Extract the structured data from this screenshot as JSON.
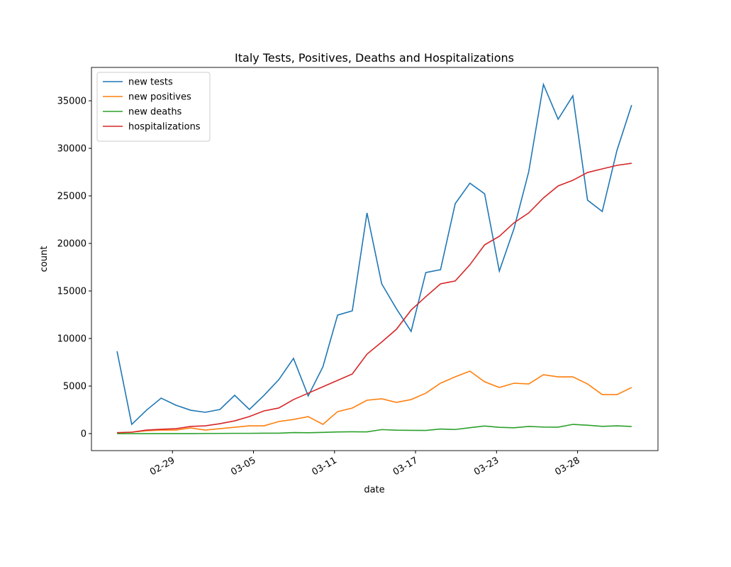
{
  "chart_data": {
    "type": "line",
    "title": "Italy Tests, Positives, Deaths and Hospitalizations",
    "x_label": "date",
    "y_label": "count",
    "x": [
      0,
      1,
      2,
      3,
      4,
      5,
      6,
      7,
      8,
      9,
      10,
      11,
      12,
      13,
      14,
      15,
      16,
      17,
      18,
      19,
      20,
      21,
      22,
      23,
      24,
      25,
      26,
      27,
      28,
      29,
      30,
      31,
      32,
      33,
      34,
      35
    ],
    "xlim": [
      -1.74,
      36.79
    ],
    "xticks": [
      {
        "value": 3.77,
        "label": "02-29"
      },
      {
        "value": 9.28,
        "label": "03-05"
      },
      {
        "value": 14.79,
        "label": "03-11"
      },
      {
        "value": 20.3,
        "label": "03-17"
      },
      {
        "value": 25.81,
        "label": "03-23"
      },
      {
        "value": 31.32,
        "label": "03-28"
      }
    ],
    "ylim": [
      -1790,
      38510
    ],
    "yticks": [
      0,
      5000,
      10000,
      15000,
      20000,
      25000,
      30000,
      35000
    ],
    "legend": "upper left",
    "series": [
      {
        "name": "new tests",
        "color": "#1f77b4",
        "values": [
          8660,
          970,
          2460,
          3730,
          2990,
          2460,
          2240,
          2540,
          4030,
          2540,
          4030,
          5670,
          7910,
          3960,
          7020,
          12460,
          12910,
          23210,
          15750,
          13130,
          10750,
          16940,
          17240,
          24180,
          26340,
          25220,
          17090,
          21570,
          27540,
          36720,
          33060,
          35520,
          24550,
          23360,
          29780,
          34550
        ]
      },
      {
        "name": "new positives",
        "color": "#ff7f0e",
        "values": [
          75,
          150,
          300,
          370,
          370,
          590,
          370,
          520,
          670,
          820,
          820,
          1270,
          1490,
          1790,
          970,
          2310,
          2690,
          3510,
          3660,
          3280,
          3580,
          4250,
          5300,
          5970,
          6570,
          5450,
          4850,
          5300,
          5220,
          6190,
          5970,
          5970,
          5220,
          4100,
          4100,
          4850
        ]
      },
      {
        "name": "new deaths",
        "color": "#2ca02c",
        "values": [
          0,
          0,
          0,
          0,
          0,
          0,
          10,
          20,
          30,
          30,
          40,
          40,
          110,
          90,
          130,
          170,
          190,
          180,
          420,
          360,
          340,
          330,
          480,
          430,
          620,
          800,
          660,
          610,
          750,
          690,
          680,
          970,
          880,
          760,
          820,
          750
        ]
      },
      {
        "name": "hospitalizations",
        "color": "#d62728",
        "values": [
          100,
          150,
          370,
          450,
          520,
          750,
          820,
          1040,
          1340,
          1790,
          2390,
          2690,
          3580,
          4250,
          4930,
          5600,
          6270,
          8360,
          9630,
          10970,
          12990,
          14400,
          15750,
          16050,
          17760,
          19850,
          20750,
          22170,
          23210,
          24780,
          26050,
          26640,
          27460,
          27840,
          28210,
          28430
        ]
      }
    ]
  }
}
